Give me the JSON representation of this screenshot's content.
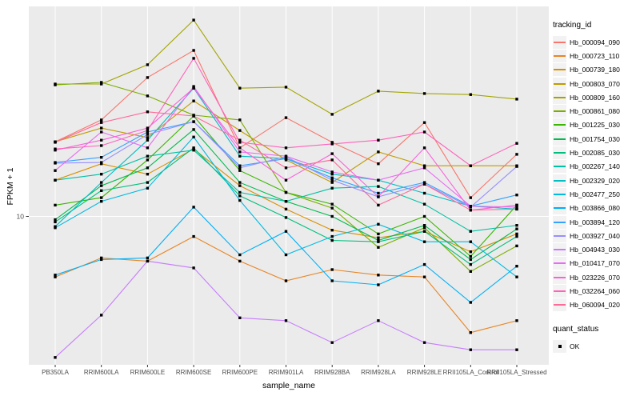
{
  "chart_data": {
    "type": "line",
    "title": "",
    "xlabel": "sample_name",
    "ylabel": "FPKM + 1",
    "y_scale": "log10",
    "y_tick_labels": [
      "10"
    ],
    "y_tick_values": [
      10
    ],
    "ylim": [
      2.4,
      70
    ],
    "grid": true,
    "legend_position": "right",
    "legend_title": "tracking_id",
    "quant_legend": {
      "title": "quant_status",
      "items": [
        "OK"
      ]
    },
    "categories": [
      "PB350LA",
      "RRIM600LA",
      "RRIM600LE",
      "RRIM600SE",
      "RRIM600PE",
      "RRIM901LA",
      "RRIM928BA",
      "RRIM928LA",
      "RRIM928LE",
      "RRII105LA_Control",
      "RRII105LA_Stressed"
    ],
    "theme": {
      "panel_bg": "#EBEBEB",
      "grid_color": "#FFFFFF",
      "point_color": "#000000",
      "axis_text_color": "#4D4D4D",
      "tick_color": "#333333",
      "legend_key_bg": "#F2F2F2"
    },
    "series": [
      {
        "name": "Hb_000094_090",
        "color": "#F8766D",
        "values": [
          20,
          24.5,
          36.3,
          46.7,
          18.9,
          25,
          19.9,
          16.3,
          23.9,
          11.9,
          17.8
        ]
      },
      {
        "name": "Hb_000723_110",
        "color": "#E88526",
        "values": [
          5.7,
          6.8,
          6.6,
          8.3,
          6.6,
          5.5,
          6.1,
          5.8,
          5.7,
          3.4,
          3.8
        ]
      },
      {
        "name": "Hb_000739_180",
        "color": "#D89000",
        "values": [
          14,
          16.3,
          14.8,
          18.7,
          13.3,
          10.7,
          8.8,
          8.2,
          8.7,
          7.2,
          8.5
        ]
      },
      {
        "name": "Hb_000803_070",
        "color": "#C09B00",
        "values": [
          20,
          22.7,
          20.8,
          29.2,
          22.2,
          16.9,
          13.7,
          18.2,
          16,
          16,
          16
        ]
      },
      {
        "name": "Hb_000809_160",
        "color": "#A3A500",
        "values": [
          34.2,
          34.2,
          40.9,
          61.9,
          32.9,
          33.2,
          25.8,
          32,
          31.3,
          31,
          29.7
        ]
      },
      {
        "name": "Hb_000861_080",
        "color": "#7CAE00",
        "values": [
          33.9,
          34.7,
          30.6,
          25.6,
          24.5,
          12.5,
          10.8,
          7.5,
          9,
          6,
          7.6
        ]
      },
      {
        "name": "Hb_001225_030",
        "color": "#39B600",
        "values": [
          11.1,
          11.9,
          16.9,
          25.4,
          15.3,
          12.5,
          11.2,
          8.5,
          10,
          6.9,
          11.1
        ]
      },
      {
        "name": "Hb_001754_030",
        "color": "#00BB4E",
        "values": [
          9.7,
          13.3,
          15.7,
          22.4,
          13.7,
          11.5,
          10,
          8,
          9.2,
          6.7,
          8.9
        ]
      },
      {
        "name": "Hb_002085_030",
        "color": "#00BF7D",
        "values": [
          9.5,
          12.7,
          13.7,
          18.9,
          12.1,
          9.9,
          8,
          7.9,
          8.7,
          6.4,
          8.3
        ]
      },
      {
        "name": "Hb_002267_140",
        "color": "#00C1A3",
        "values": [
          14,
          14.8,
          17.5,
          18.5,
          12.5,
          11.5,
          13,
          13.2,
          11.2,
          8.7,
          9.2
        ]
      },
      {
        "name": "Hb_002329_020",
        "color": "#00BFC4",
        "values": [
          9.1,
          13.7,
          20.3,
          32.9,
          17.5,
          17.1,
          14.8,
          14,
          12.4,
          11,
          10.7
        ]
      },
      {
        "name": "Hb_002477_250",
        "color": "#00BAE0",
        "values": [
          9,
          11.5,
          13,
          20.9,
          11.6,
          7,
          8.3,
          9.3,
          7.9,
          7.9,
          5.7
        ]
      },
      {
        "name": "Hb_003866_080",
        "color": "#00B0F6",
        "values": [
          5.8,
          6.7,
          6.8,
          10.9,
          7,
          8.7,
          5.5,
          5.3,
          6.4,
          4.5,
          6.3
        ]
      },
      {
        "name": "Hb_003894_120",
        "color": "#35A2FF",
        "values": [
          16.5,
          17.3,
          21.9,
          24.1,
          16,
          17.1,
          14.3,
          12.4,
          13.7,
          11,
          12.2
        ]
      },
      {
        "name": "Hb_003927_040",
        "color": "#9590FF",
        "values": [
          16.4,
          16.5,
          21.4,
          24.1,
          15.7,
          17.4,
          14,
          12,
          13.5,
          10.9,
          15.9
        ]
      },
      {
        "name": "Hb_004943_030",
        "color": "#C77CFF",
        "values": [
          2.7,
          4,
          6.6,
          6.2,
          3.9,
          3.8,
          3.1,
          3.8,
          3.1,
          2.9,
          2.9
        ]
      },
      {
        "name": "Hb_010417_070",
        "color": "#E76BF3",
        "values": [
          15.3,
          21.9,
          18.9,
          33.4,
          18.2,
          17.5,
          15.1,
          14,
          15.7,
          11,
          10.9
        ]
      },
      {
        "name": "Hb_023226_070",
        "color": "#FA62DB",
        "values": [
          18.5,
          20.3,
          22.7,
          32.9,
          18.9,
          14,
          17.9,
          12,
          18.9,
          10.6,
          11.1
        ]
      },
      {
        "name": "Hb_032264_060",
        "color": "#FF62BC",
        "values": [
          18.7,
          19.3,
          22.2,
          43.4,
          19.9,
          18.9,
          19.6,
          20.3,
          21.9,
          16,
          19.7
        ]
      },
      {
        "name": "Hb_060094_020",
        "color": "#FF6A98",
        "values": [
          19.9,
          23.9,
          26.4,
          25.4,
          20.3,
          15.7,
          16.9,
          11.1,
          13.5,
          10.6,
          10.7
        ]
      }
    ]
  }
}
